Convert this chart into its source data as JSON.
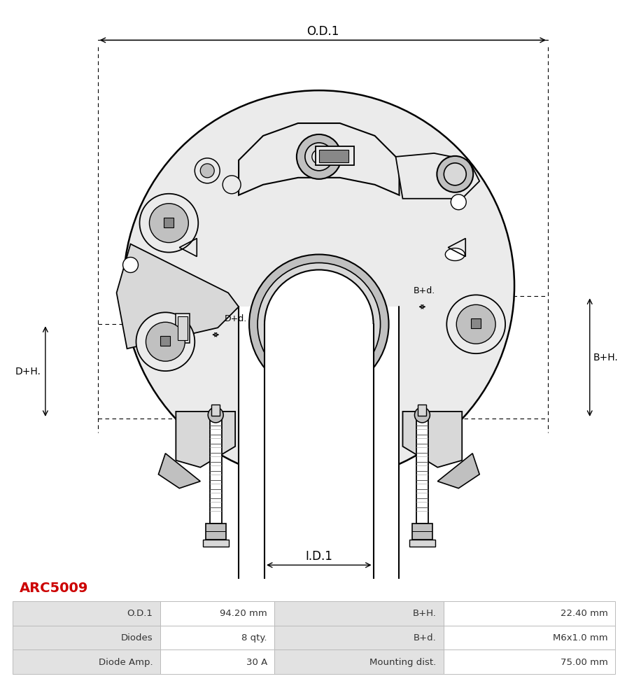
{
  "title_text": "ARC5009",
  "title_color": "#cc0000",
  "bg_color": "#ffffff",
  "dim_label_OD1": "O.D.1",
  "dim_label_ID1": "I.D.1",
  "dim_label_BH": "B+H.",
  "dim_label_DH": "D+H.",
  "dim_label_Bd": "B+d.",
  "dim_label_Dd": "D+d.",
  "table_rows": [
    [
      "O.D.1",
      "94.20 mm",
      "B+H.",
      "22.40 mm"
    ],
    [
      "Diodes",
      "8 qty.",
      "B+d.",
      "M6x1.0 mm"
    ],
    [
      "Diode Amp.",
      "30 A",
      "Mounting dist.",
      "75.00 mm"
    ]
  ],
  "line_color": "#000000",
  "gray_fill": "#d8d8d8",
  "light_gray": "#ebebeb",
  "mid_gray": "#c0c0c0",
  "dark_gray": "#888888",
  "table_header_bg": "#e2e2e2",
  "table_value_bg": "#ffffff"
}
